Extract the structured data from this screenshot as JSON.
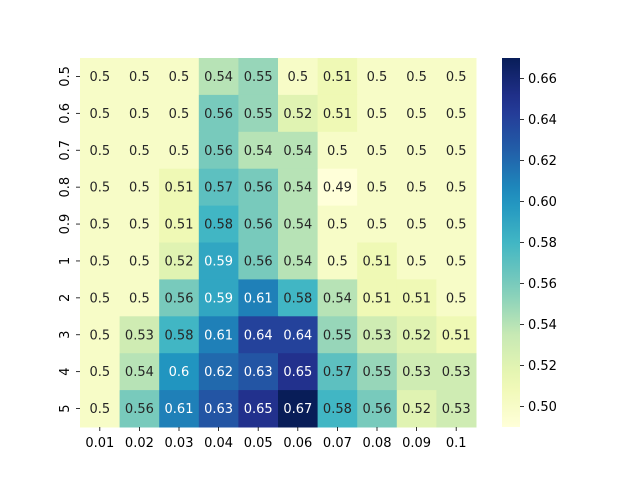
{
  "chart_data": {
    "type": "heatmap",
    "x_categories": [
      "0.01",
      "0.02",
      "0.03",
      "0.04",
      "0.05",
      "0.06",
      "0.07",
      "0.08",
      "0.09",
      "0.1"
    ],
    "y_categories": [
      "0.5",
      "0.6",
      "0.7",
      "0.8",
      "0.9",
      "1",
      "2",
      "3",
      "4",
      "5"
    ],
    "values": [
      [
        0.5,
        0.5,
        0.5,
        0.54,
        0.55,
        0.5,
        0.51,
        0.5,
        0.5,
        0.5
      ],
      [
        0.5,
        0.5,
        0.5,
        0.56,
        0.55,
        0.52,
        0.51,
        0.5,
        0.5,
        0.5
      ],
      [
        0.5,
        0.5,
        0.5,
        0.56,
        0.54,
        0.54,
        0.5,
        0.5,
        0.5,
        0.5
      ],
      [
        0.5,
        0.5,
        0.51,
        0.57,
        0.56,
        0.54,
        0.49,
        0.5,
        0.5,
        0.5
      ],
      [
        0.5,
        0.5,
        0.51,
        0.58,
        0.56,
        0.54,
        0.5,
        0.5,
        0.5,
        0.5
      ],
      [
        0.5,
        0.5,
        0.52,
        0.59,
        0.56,
        0.54,
        0.5,
        0.51,
        0.5,
        0.5
      ],
      [
        0.5,
        0.5,
        0.56,
        0.59,
        0.61,
        0.58,
        0.54,
        0.51,
        0.51,
        0.5
      ],
      [
        0.5,
        0.53,
        0.58,
        0.61,
        0.64,
        0.64,
        0.55,
        0.53,
        0.52,
        0.51
      ],
      [
        0.5,
        0.54,
        0.6,
        0.62,
        0.63,
        0.65,
        0.57,
        0.55,
        0.53,
        0.53
      ],
      [
        0.5,
        0.56,
        0.61,
        0.63,
        0.65,
        0.67,
        0.58,
        0.56,
        0.52,
        0.53
      ]
    ],
    "colorbar": {
      "ticks": [
        "0.50",
        "0.52",
        "0.54",
        "0.56",
        "0.58",
        "0.60",
        "0.62",
        "0.64",
        "0.66"
      ],
      "range": [
        0.49,
        0.67
      ],
      "colormap": "YlGnBu"
    },
    "title": "",
    "xlabel": "",
    "ylabel": ""
  }
}
